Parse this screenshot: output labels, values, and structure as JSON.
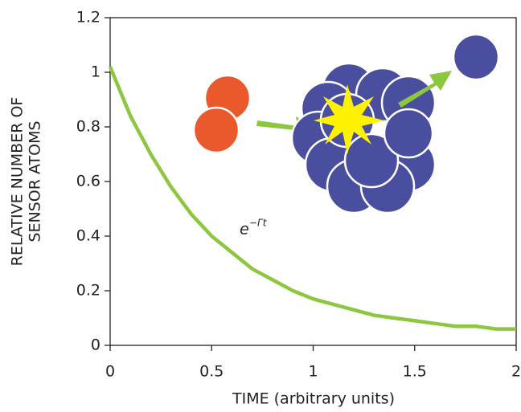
{
  "chart_data": {
    "type": "line",
    "x": [
      0,
      0.1,
      0.2,
      0.3,
      0.4,
      0.5,
      0.6,
      0.7,
      0.8,
      0.9,
      1,
      1.1,
      1.2,
      1.3,
      1.4,
      1.5,
      1.6,
      1.7,
      1.8,
      1.9,
      2
    ],
    "series": [
      {
        "color": "#8dc63f",
        "values": [
          1.02,
          0.84,
          0.7,
          0.58,
          0.48,
          0.4,
          0.34,
          0.28,
          0.24,
          0.2,
          0.17,
          0.15,
          0.13,
          0.11,
          0.1,
          0.09,
          0.08,
          0.07,
          0.07,
          0.06,
          0.06
        ]
      }
    ],
    "xlim": [
      0,
      2
    ],
    "xticks": [
      0,
      0.5,
      1,
      1.5,
      2
    ],
    "ylim": [
      0,
      1.2
    ],
    "yticks": [
      0,
      0.2,
      0.4,
      0.6,
      0.8,
      1,
      1.2
    ],
    "x_label": "TIME (arbitrary units)",
    "y_label": [
      "RELATIVE NUMBER OF",
      "SENSOR ATOMS"
    ],
    "annotation": {
      "base": "e",
      "exponent": "−Γt"
    }
  }
}
